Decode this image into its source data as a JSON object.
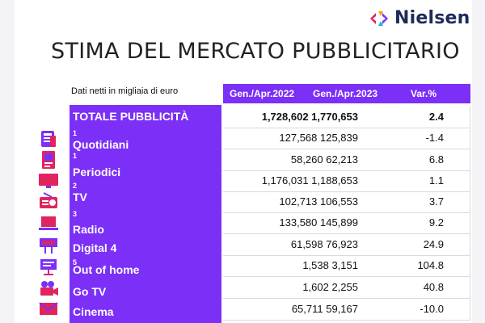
{
  "brand": {
    "name": "Nielsen"
  },
  "title": "STIMA DEL MERCATO PUBBLICITARIO",
  "subtitle": "Dati netti in migliaia di euro",
  "columns": {
    "c1": "Gen./Apr.2022",
    "c2": "Gen./Apr.2023",
    "c3": "Var.%"
  },
  "colors": {
    "accent": "#7b2ff7",
    "icon": "#e0245e",
    "iconSecondary": "#7b2ff7"
  },
  "total": {
    "label": "TOTALE PUBBLICITÀ",
    "values": "1,728,602 1,770,653",
    "var": "2.4"
  },
  "rows": [
    {
      "label": "Quotidiani",
      "sup": "1",
      "values": "127,568 125,839",
      "var": "-1.4",
      "icon": "newspaper-icon"
    },
    {
      "label": "Periodici",
      "sup": "1",
      "values": "58,260 62,213",
      "var": "6.8",
      "icon": "magazine-icon"
    },
    {
      "label": "TV",
      "sup": "2",
      "values": "1,176,031 1,188,653",
      "var": "1.1",
      "icon": "tv-icon"
    },
    {
      "label": "Radio",
      "sup": "3",
      "values": "102,713 106,553",
      "var": "3.7",
      "icon": "radio-icon"
    },
    {
      "label": "Digital 4",
      "sup": "",
      "values": "133,580 145,899",
      "var": "9.2",
      "icon": "laptop-icon"
    },
    {
      "label": "Out of home",
      "sup": "5",
      "values": "61,598 76,923",
      "var": "24.9",
      "icon": "billboard-icon"
    },
    {
      "label": "Go TV",
      "sup": "",
      "values": "1,538 3,151",
      "var": "104.8",
      "icon": "screen-stand-icon"
    },
    {
      "label": "Cinema",
      "sup": "",
      "values": "1,602 2,255",
      "var": "40.8",
      "icon": "camera-icon"
    },
    {
      "label": "",
      "sup": "",
      "values": "65,711 59,167",
      "var": "-10.0",
      "icon": "envelope-icon"
    }
  ]
}
